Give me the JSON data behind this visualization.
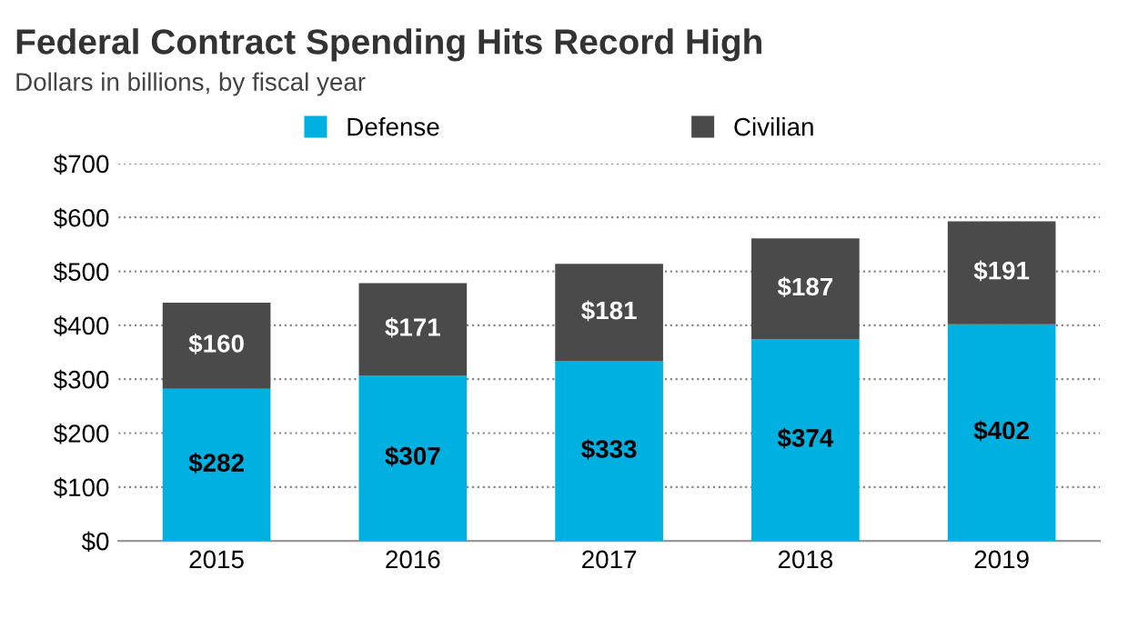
{
  "chart_data": {
    "type": "bar",
    "title": "Federal Contract Spending Hits Record High",
    "subtitle": "Dollars in billions, by fiscal year",
    "categories": [
      "2015",
      "2016",
      "2017",
      "2018",
      "2019"
    ],
    "stacked": true,
    "series": [
      {
        "name": "Defense",
        "color": "#00b0e0",
        "values": [
          282,
          307,
          333,
          374,
          402
        ],
        "value_labels": [
          "$282",
          "$307",
          "$333",
          "$374",
          "$402"
        ]
      },
      {
        "name": "Civilian",
        "color": "#4a4a4a",
        "values": [
          160,
          171,
          181,
          187,
          191
        ],
        "value_labels": [
          "$160",
          "$171",
          "$181",
          "$187",
          "$191"
        ]
      }
    ],
    "ylim": [
      0,
      700
    ],
    "yticks": [
      {
        "value": 0,
        "label": "$0"
      },
      {
        "value": 100,
        "label": "$100"
      },
      {
        "value": 200,
        "label": "$200"
      },
      {
        "value": 300,
        "label": "$300"
      },
      {
        "value": 400,
        "label": "$400"
      },
      {
        "value": 500,
        "label": "$500"
      },
      {
        "value": 600,
        "label": "$600"
      },
      {
        "value": 700,
        "label": "$700"
      }
    ],
    "grid": "y",
    "legend": "top"
  }
}
